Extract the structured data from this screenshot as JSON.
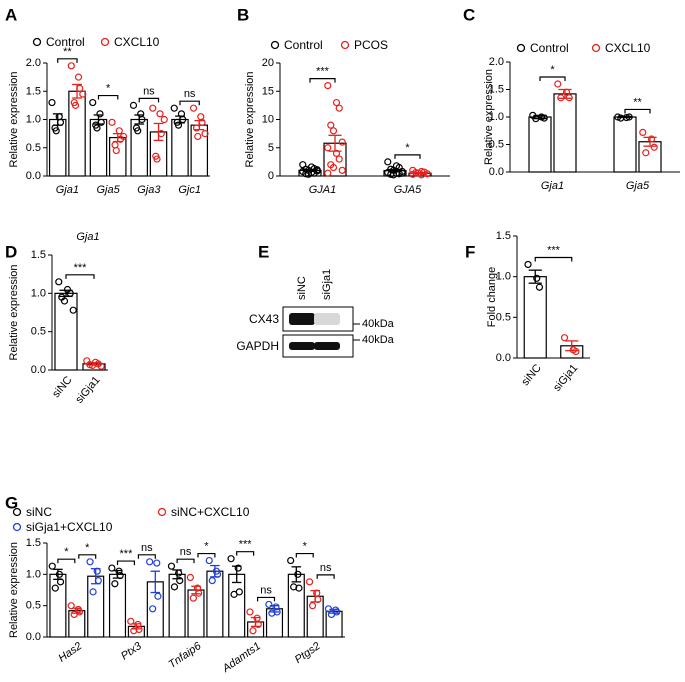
{
  "chart_data": [
    {
      "type": "bar",
      "panel": "A",
      "ylabel": "Relative expression",
      "categories": [
        "Gja1",
        "Gja5",
        "Gja3",
        "Gjc1"
      ],
      "italic_categories": true,
      "rotate_categories": false,
      "ylim": [
        0,
        2
      ],
      "yticks": [
        {
          "value": 0,
          "label": "0.0"
        },
        0.5,
        {
          "value": 1,
          "label": "1.0"
        },
        1.5,
        {
          "value": 2,
          "label": "2.0"
        }
      ],
      "series": [
        {
          "name": "Control",
          "color": "#000000",
          "values": [
            1.0,
            1.0,
            1.0,
            1.0
          ],
          "errors": [
            0.1,
            0.08,
            0.08,
            0.06
          ],
          "points": [
            [
              1.3,
              1.05,
              0.95,
              0.85,
              0.8
            ],
            [
              1.3,
              1.1,
              0.95,
              0.9,
              0.85
            ],
            [
              1.25,
              1.1,
              1.0,
              0.85,
              0.8
            ],
            [
              1.2,
              1.1,
              1.0,
              0.95,
              0.9
            ]
          ]
        },
        {
          "name": "CXCL10",
          "color": "#e8201c",
          "values": [
            1.5,
            0.68,
            0.78,
            0.9
          ],
          "errors": [
            0.12,
            0.07,
            0.15,
            0.08
          ],
          "points": [
            [
              1.95,
              1.75,
              1.55,
              1.3,
              1.25,
              1.45
            ],
            [
              0.95,
              0.8,
              0.65,
              0.55,
              0.45,
              0.7
            ],
            [
              1.2,
              1.1,
              0.75,
              0.35,
              0.3,
              1.0
            ],
            [
              1.2,
              1.05,
              0.95,
              0.85,
              0.7,
              0.75
            ]
          ]
        }
      ],
      "significance": [
        "**",
        "*",
        "ns",
        "ns"
      ]
    },
    {
      "type": "bar",
      "panel": "B",
      "ylabel": "Relative expression",
      "categories": [
        "GJA1",
        "GJA5"
      ],
      "italic_categories": true,
      "rotate_categories": false,
      "ylim": [
        0,
        20
      ],
      "yticks": [
        0,
        5,
        10,
        15,
        20
      ],
      "series": [
        {
          "name": "Control",
          "color": "#000000",
          "values": [
            1.0,
            0.95
          ],
          "errors": [
            0.17,
            0.2
          ],
          "points": [
            [
              2.0,
              1.6,
              1.3,
              1.2,
              1.0,
              0.9,
              0.8,
              0.6,
              0.5,
              0.4,
              0.3,
              1.1
            ],
            [
              2.5,
              1.8,
              1.5,
              1.2,
              1.0,
              0.8,
              0.6,
              0.5,
              0.4,
              0.3,
              0.2,
              0.5
            ]
          ]
        },
        {
          "name": "PCOS",
          "color": "#e8201c",
          "values": [
            5.8,
            0.5
          ],
          "errors": [
            1.4,
            0.1
          ],
          "points": [
            [
              16,
              13,
              12,
              9,
              8,
              6,
              5,
              4,
              3,
              2,
              1.5,
              1,
              0.5
            ],
            [
              1.0,
              0.8,
              0.7,
              0.6,
              0.5,
              0.4,
              0.3,
              0.2
            ]
          ]
        }
      ],
      "significance": [
        "***",
        "*"
      ]
    },
    {
      "type": "bar",
      "panel": "C",
      "ylabel": "Relative expression",
      "categories": [
        "Gja1",
        "Gja5"
      ],
      "italic_categories": true,
      "rotate_categories": false,
      "ylim": [
        0,
        2
      ],
      "yticks": [
        {
          "value": 0,
          "label": "0.0"
        },
        0.5,
        {
          "value": 1,
          "label": "1.0"
        },
        1.5,
        {
          "value": 2,
          "label": "2.0"
        }
      ],
      "series": [
        {
          "name": "Control",
          "color": "#000000",
          "values": [
            1.0,
            1.0
          ],
          "errors": [
            0.03,
            0.01
          ],
          "points": [
            [
              1.03,
              1.0,
              0.98,
              0.97
            ],
            [
              1.0,
              0.99,
              1.0,
              0.98
            ]
          ]
        },
        {
          "name": "CXCL10",
          "color": "#e8201c",
          "values": [
            1.42,
            0.55
          ],
          "errors": [
            0.08,
            0.08
          ],
          "points": [
            [
              1.6,
              1.45,
              1.35,
              1.35
            ],
            [
              0.72,
              0.6,
              0.45,
              0.35
            ]
          ]
        }
      ],
      "significance": [
        "*",
        "**"
      ]
    },
    {
      "type": "bar",
      "panel": "D",
      "title": "Gja1",
      "ylabel": "Relative expression",
      "categories": [
        "siNC",
        "siGja1"
      ],
      "italic_categories": false,
      "rotate_categories": true,
      "ylim": [
        0,
        1.5
      ],
      "yticks": [
        {
          "value": 0,
          "label": "0.0"
        },
        0.5,
        {
          "value": 1,
          "label": "1.0"
        },
        1.5
      ],
      "values": [
        1.0,
        0.08
      ],
      "errors": [
        0.04,
        0.015
      ],
      "colors": [
        "#000000",
        "#e8201c"
      ],
      "points": [
        [
          1.15,
          1.05,
          1.0,
          0.95,
          0.9,
          0.78
        ],
        [
          0.12,
          0.1,
          0.08,
          0.07,
          0.06,
          0.05
        ]
      ],
      "significance": "***"
    },
    {
      "type": "bar",
      "panel": "F",
      "ylabel": "Fold change",
      "categories": [
        "siNC",
        "siGja1"
      ],
      "italic_categories": false,
      "rotate_categories": true,
      "ylim": [
        0,
        1.5
      ],
      "yticks": [
        {
          "value": 0,
          "label": "0.0"
        },
        0.5,
        {
          "value": 1,
          "label": "1.0"
        },
        1.5
      ],
      "values": [
        1.0,
        0.15
      ],
      "errors": [
        0.08,
        0.06
      ],
      "colors": [
        "#000000",
        "#e8201c"
      ],
      "points": [
        [
          1.15,
          0.98,
          0.87
        ],
        [
          0.25,
          0.1,
          0.08
        ]
      ],
      "significance": "***"
    },
    {
      "type": "bar",
      "panel": "G",
      "ylabel": "Relative expression",
      "categories": [
        "Has2",
        "Ptx3",
        "Tnfaip6",
        "Adamts1",
        "Ptgs2"
      ],
      "italic_categories": true,
      "rotate_categories": true,
      "ylim": [
        0,
        1.5
      ],
      "yticks": [
        {
          "value": 0,
          "label": "0.0"
        },
        0.5,
        {
          "value": 1,
          "label": "1.0"
        },
        1.5
      ],
      "series": [
        {
          "name": "siNC",
          "color": "#000000",
          "values": [
            1.0,
            1.0,
            1.0,
            1.0,
            1.0
          ],
          "errors": [
            0.08,
            0.06,
            0.07,
            0.13,
            0.12
          ],
          "points": [
            [
              1.13,
              1.0,
              0.88,
              0.78
            ],
            [
              1.1,
              1.05,
              0.98,
              0.85
            ],
            [
              1.13,
              1.02,
              0.9,
              0.8
            ],
            [
              1.25,
              1.1,
              0.72,
              0.68
            ],
            [
              1.22,
              1.0,
              0.78,
              0.8
            ]
          ]
        },
        {
          "name": "siNC+CXCL10",
          "color": "#e8201c",
          "values": [
            0.42,
            0.17,
            0.75,
            0.24,
            0.65
          ],
          "errors": [
            0.04,
            0.04,
            0.06,
            0.07,
            0.09
          ],
          "points": [
            [
              0.5,
              0.44,
              0.4,
              0.36
            ],
            [
              0.25,
              0.2,
              0.12,
              0.1
            ],
            [
              0.95,
              0.78,
              0.7,
              0.62
            ],
            [
              0.4,
              0.3,
              0.2,
              0.1
            ],
            [
              0.88,
              0.7,
              0.6,
              0.5
            ]
          ]
        },
        {
          "name": "siGja1+CXCL10",
          "color": "#1f3fd6",
          "values": [
            0.97,
            0.88,
            1.05,
            0.45,
            0.41
          ],
          "errors": [
            0.12,
            0.17,
            0.09,
            0.05,
            0.03
          ],
          "points": [
            [
              1.2,
              1.05,
              0.9,
              0.72
            ],
            [
              1.2,
              1.18,
              0.65,
              0.45
            ],
            [
              1.22,
              1.05,
              1.0,
              0.9
            ],
            [
              0.52,
              0.48,
              0.4,
              0.38
            ],
            [
              0.45,
              0.43,
              0.4,
              0.36
            ]
          ]
        }
      ],
      "significance": [
        [
          "*",
          "*"
        ],
        [
          "***",
          "ns"
        ],
        [
          "ns",
          "*"
        ],
        [
          "***",
          "ns"
        ],
        [
          "*",
          "ns"
        ]
      ]
    }
  ],
  "blot": {
    "panel": "E",
    "lanes": [
      "siNC",
      "siGja1"
    ],
    "rows": [
      {
        "label": "CX43",
        "marker": "40kDa"
      },
      {
        "label": "GAPDH",
        "marker": "40kDa"
      }
    ]
  }
}
